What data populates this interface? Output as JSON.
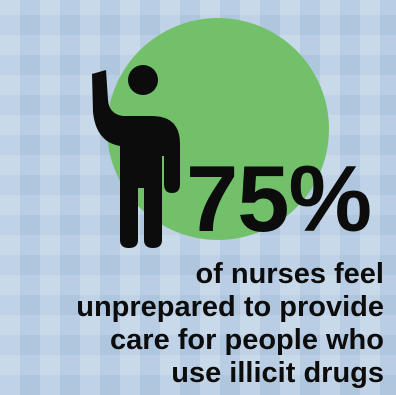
{
  "stat": {
    "value": "75%"
  },
  "caption": {
    "lines": [
      "of nurses feel",
      "unprepared to provide",
      "care for people who",
      "use illicit drugs"
    ]
  },
  "colors": {
    "background": "#b9cee4",
    "circle": "#72c16a",
    "figure": "#0c0c0c",
    "text": "#0c0c0c"
  },
  "icons": {
    "figure": "person-waving-icon"
  }
}
